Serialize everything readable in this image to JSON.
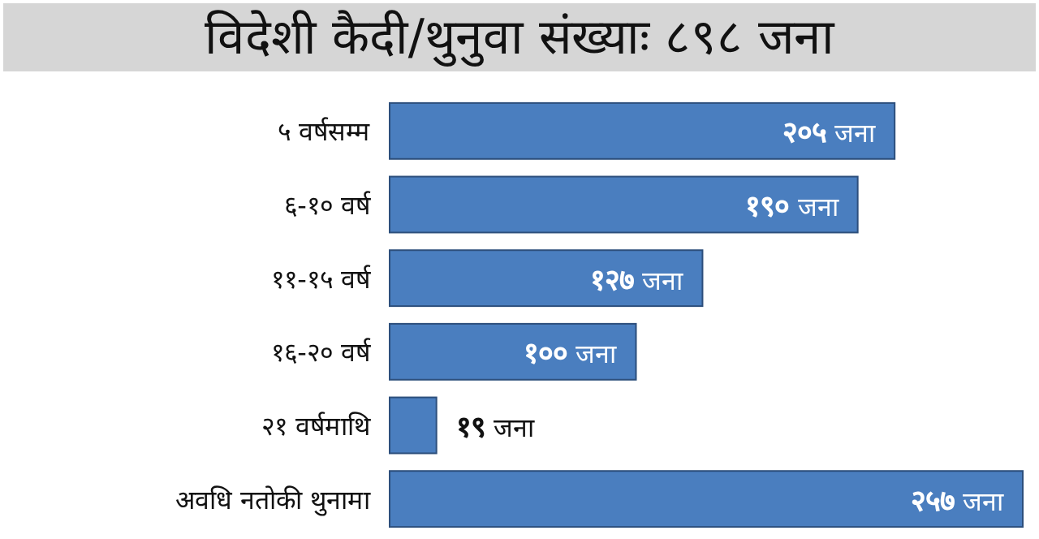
{
  "chart_data": {
    "type": "bar",
    "orientation": "horizontal",
    "title": "विदेशी कैदी/थुनुवा संख्याः ८९८ जना",
    "categories": [
      "५ वर्षसम्म",
      "६-१० वर्ष",
      "११-१५ वर्ष",
      "१६-२० वर्ष",
      "२१ वर्षमाथि",
      "अवधि नतोकी थुनामा"
    ],
    "values": [
      205,
      190,
      127,
      100,
      19,
      257
    ],
    "color": "#4a7ebf",
    "value_labels": [
      "२०५ जना",
      "१९० जना",
      "१२७ जना",
      "१०० जना",
      "१९ जना",
      "२५७ जना"
    ]
  }
}
